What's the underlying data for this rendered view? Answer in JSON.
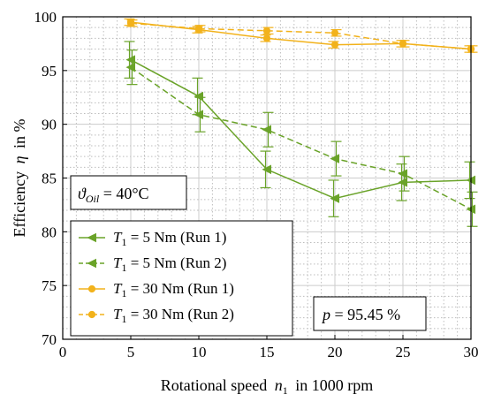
{
  "colors": {
    "green": "#6aa329",
    "orange": "#f2b21b",
    "major_grid": "#cccccc",
    "minor_grid": "#bdbdbd"
  },
  "chart_data": {
    "type": "line",
    "xlabel_main": "Rotational speed",
    "xlabel_sym": "n",
    "xlabel_sub": "1",
    "xlabel_tail": "in 1000 rpm",
    "ylabel_main": "Efficiency",
    "ylabel_sym": "η",
    "ylabel_tail": "in %",
    "xlim": [
      0,
      30
    ],
    "ylim": [
      70,
      100
    ],
    "xticks": [
      0,
      5,
      10,
      15,
      20,
      25,
      30
    ],
    "yticks": [
      70,
      75,
      80,
      85,
      90,
      95,
      100
    ],
    "grid": "major and minor",
    "x": [
      5,
      10,
      15,
      20,
      25,
      30
    ],
    "series": [
      {
        "name": "T1 = 5 Nm (Run 1)",
        "color": "green",
        "marker": "triangle-left",
        "dash": "solid",
        "values": [
          96.0,
          92.6,
          85.8,
          83.1,
          84.6,
          84.8
        ],
        "err": [
          1.7,
          1.7,
          1.7,
          1.7,
          1.7,
          1.7
        ]
      },
      {
        "name": "T1 = 5 Nm (Run 2)",
        "color": "green",
        "marker": "triangle-left",
        "dash": "dashed",
        "values": [
          95.3,
          90.9,
          89.5,
          86.8,
          85.4,
          82.1
        ],
        "err": [
          1.6,
          1.6,
          1.6,
          1.6,
          1.6,
          1.6
        ]
      },
      {
        "name": "T1 = 30 Nm (Run 1)",
        "color": "orange",
        "marker": "circle",
        "dash": "solid",
        "values": [
          99.5,
          98.8,
          98.0,
          97.4,
          97.5,
          97.0
        ],
        "err": [
          0.3,
          0.3,
          0.3,
          0.3,
          0.3,
          0.3
        ]
      },
      {
        "name": "T1 = 30 Nm (Run 2)",
        "color": "orange",
        "marker": "circle",
        "dash": "dashed",
        "values": [
          99.4,
          98.9,
          98.7,
          98.5,
          97.5,
          97.0
        ],
        "err": [
          0.3,
          0.3,
          0.3,
          0.3,
          0.3,
          0.3
        ]
      }
    ],
    "legend": {
      "placement": "bottom-left",
      "entries": [
        {
          "sym": "T",
          "sub": "1",
          "text": " = 5 Nm (Run 1)"
        },
        {
          "sym": "T",
          "sub": "1",
          "text": " = 5 Nm (Run 2)"
        },
        {
          "sym": "T",
          "sub": "1",
          "text": " = 30 Nm (Run 1)"
        },
        {
          "sym": "T",
          "sub": "1",
          "text": " = 30 Nm (Run 2)"
        }
      ]
    },
    "annotations": {
      "oil_sym": "ϑ",
      "oil_sub": "Oil",
      "oil_text": " = 40°C",
      "p_sym": "p",
      "p_text": " = 95.45 %"
    }
  }
}
